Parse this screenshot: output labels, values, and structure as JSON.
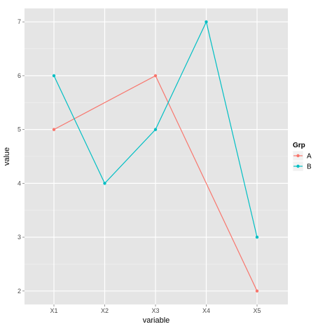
{
  "chart_data": {
    "type": "line",
    "categories": [
      "X1",
      "X2",
      "X3",
      "X4",
      "X5"
    ],
    "series": [
      {
        "name": "A",
        "values": [
          5,
          null,
          6,
          null,
          2
        ],
        "color": "#F8766D"
      },
      {
        "name": "B",
        "values": [
          6,
          4,
          5,
          7,
          3
        ],
        "color": "#00BFC4"
      }
    ],
    "xlabel": "variable",
    "ylabel": "value",
    "ylim": [
      1.75,
      7.25
    ],
    "yticks": [
      2,
      3,
      4,
      5,
      6,
      7
    ],
    "legend": {
      "title": "Grp",
      "position": "right"
    },
    "grid": true,
    "panel_background": "#E5E5E5",
    "grid_color": "#FFFFFF"
  }
}
